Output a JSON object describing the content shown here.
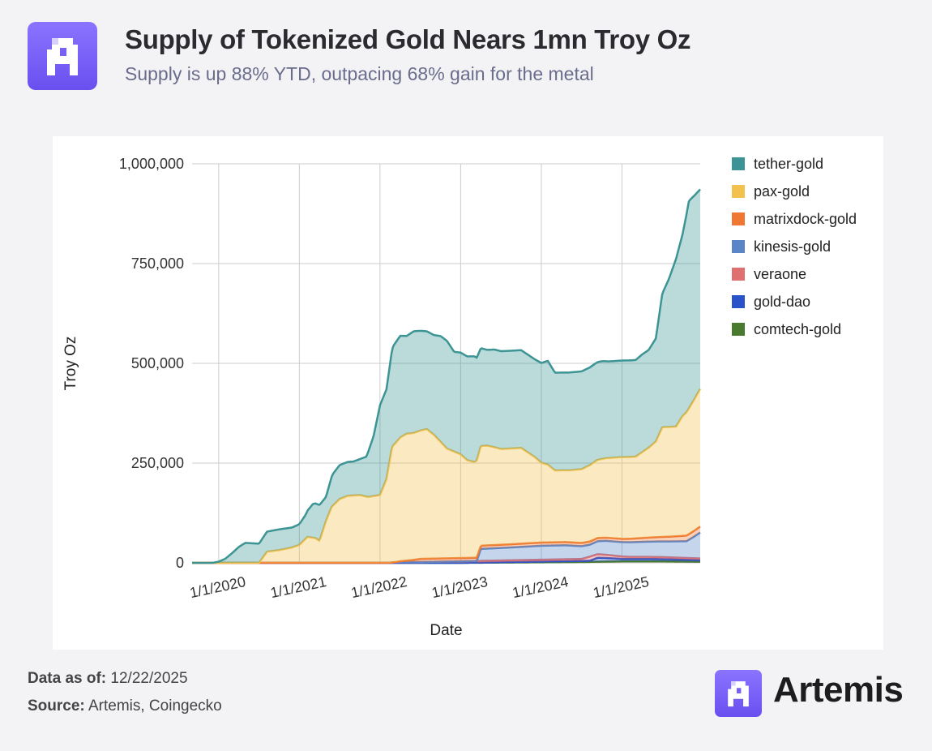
{
  "header": {
    "title": "Supply of Tokenized Gold Nears 1mn Troy Oz",
    "subtitle": "Supply is up 88% YTD,  outpacing 68% gain for the metal"
  },
  "footer": {
    "data_as_of_label": "Data as of:",
    "data_as_of_value": "12/22/2025",
    "source_label": "Source:",
    "source_value": "Artemis, Coingecko",
    "brand": "Artemis"
  },
  "colors": {
    "tether-gold": "#3d9494",
    "pax-gold": "#f2c14e",
    "matrixdock-gold": "#ef7733",
    "kinesis-gold": "#5a86c8",
    "veraone": "#e07070",
    "gold-dao": "#2a52c9",
    "comtech-gold": "#4a7a30"
  },
  "chart_data": {
    "type": "area",
    "stacked": true,
    "xlabel": "Date",
    "ylabel": "Troy Oz",
    "ylim": [
      0,
      1000000
    ],
    "xlim": [
      2019.67,
      2025.97
    ],
    "yticks": [
      0,
      250000,
      500000,
      750000,
      1000000
    ],
    "ytick_labels": [
      "0",
      "250,000",
      "500,000",
      "750,000",
      "1,000,000"
    ],
    "xticks": [
      2020,
      2021,
      2022,
      2023,
      2024,
      2025
    ],
    "xtick_labels": [
      "1/1/2020",
      "1/1/2021",
      "1/1/2022",
      "1/1/2023",
      "1/1/2024",
      "1/1/2025"
    ],
    "grid": true,
    "legend_position": "right",
    "series": [
      {
        "name": "comtech-gold",
        "points": [
          [
            2019.67,
            0
          ],
          [
            2023.0,
            0
          ],
          [
            2024.5,
            2000
          ],
          [
            2025.0,
            4000
          ],
          [
            2025.5,
            4000
          ],
          [
            2025.97,
            3000
          ]
        ]
      },
      {
        "name": "gold-dao",
        "points": [
          [
            2019.67,
            0
          ],
          [
            2023.0,
            0
          ],
          [
            2024.6,
            3000
          ],
          [
            2024.7,
            10000
          ],
          [
            2024.8,
            9000
          ],
          [
            2025.0,
            6000
          ],
          [
            2025.3,
            6000
          ],
          [
            2025.97,
            4000
          ]
        ]
      },
      {
        "name": "veraone",
        "points": [
          [
            2019.67,
            0
          ],
          [
            2022.1,
            0
          ],
          [
            2022.2,
            2000
          ],
          [
            2022.5,
            2000
          ],
          [
            2023.0,
            4000
          ],
          [
            2024.5,
            5000
          ],
          [
            2024.6,
            10000
          ],
          [
            2024.9,
            7000
          ],
          [
            2025.1,
            5000
          ],
          [
            2025.5,
            5000
          ],
          [
            2025.97,
            4000
          ]
        ]
      },
      {
        "name": "kinesis-gold",
        "points": [
          [
            2019.67,
            0
          ],
          [
            2023.2,
            0
          ],
          [
            2023.25,
            30000
          ],
          [
            2023.6,
            32000
          ],
          [
            2024.0,
            35000
          ],
          [
            2024.3,
            35000
          ],
          [
            2024.5,
            32000
          ],
          [
            2024.6,
            30000
          ],
          [
            2024.8,
            35000
          ],
          [
            2025.0,
            36000
          ],
          [
            2025.3,
            38000
          ],
          [
            2025.6,
            40000
          ],
          [
            2025.8,
            42000
          ],
          [
            2025.9,
            55000
          ],
          [
            2025.97,
            65000
          ]
        ]
      },
      {
        "name": "matrixdock-gold",
        "points": [
          [
            2019.67,
            0
          ],
          [
            2022.2,
            0
          ],
          [
            2022.25,
            2000
          ],
          [
            2022.4,
            5000
          ],
          [
            2022.5,
            8000
          ],
          [
            2023.2,
            8000
          ],
          [
            2023.25,
            8000
          ],
          [
            2024.0,
            8000
          ],
          [
            2024.3,
            8000
          ],
          [
            2024.6,
            8000
          ],
          [
            2025.0,
            8000
          ],
          [
            2025.3,
            10000
          ],
          [
            2025.6,
            12000
          ],
          [
            2025.8,
            14000
          ],
          [
            2025.97,
            15000
          ]
        ]
      },
      {
        "name": "pax-gold",
        "points": [
          [
            2019.67,
            0
          ],
          [
            2020.5,
            0
          ],
          [
            2020.6,
            28000
          ],
          [
            2020.75,
            32000
          ],
          [
            2020.9,
            38000
          ],
          [
            2021.0,
            45000
          ],
          [
            2021.1,
            65000
          ],
          [
            2021.2,
            62000
          ],
          [
            2021.25,
            55000
          ],
          [
            2021.33,
            105000
          ],
          [
            2021.4,
            140000
          ],
          [
            2021.5,
            160000
          ],
          [
            2021.6,
            168000
          ],
          [
            2021.75,
            170000
          ],
          [
            2021.85,
            165000
          ],
          [
            2022.0,
            170000
          ],
          [
            2022.08,
            210000
          ],
          [
            2022.15,
            290000
          ],
          [
            2022.25,
            310000
          ],
          [
            2022.33,
            318000
          ],
          [
            2022.42,
            318000
          ],
          [
            2022.58,
            325000
          ],
          [
            2022.67,
            310000
          ],
          [
            2022.83,
            275000
          ],
          [
            2023.0,
            260000
          ],
          [
            2023.08,
            245000
          ],
          [
            2023.17,
            240000
          ],
          [
            2023.25,
            250000
          ],
          [
            2023.33,
            250000
          ],
          [
            2023.42,
            245000
          ],
          [
            2023.5,
            240000
          ],
          [
            2023.58,
            240000
          ],
          [
            2023.75,
            240000
          ],
          [
            2023.92,
            215000
          ],
          [
            2024.0,
            200000
          ],
          [
            2024.08,
            195000
          ],
          [
            2024.17,
            180000
          ],
          [
            2024.33,
            180000
          ],
          [
            2024.5,
            185000
          ],
          [
            2024.58,
            190000
          ],
          [
            2024.67,
            195000
          ],
          [
            2024.83,
            200000
          ],
          [
            2025.0,
            205000
          ],
          [
            2025.17,
            205000
          ],
          [
            2025.25,
            215000
          ],
          [
            2025.33,
            225000
          ],
          [
            2025.42,
            240000
          ],
          [
            2025.5,
            275000
          ],
          [
            2025.58,
            275000
          ],
          [
            2025.67,
            275000
          ],
          [
            2025.75,
            300000
          ],
          [
            2025.83,
            315000
          ],
          [
            2025.97,
            345000
          ]
        ]
      },
      {
        "name": "tether-gold",
        "points": [
          [
            2019.67,
            0
          ],
          [
            2019.92,
            0
          ],
          [
            2020.0,
            3000
          ],
          [
            2020.08,
            10000
          ],
          [
            2020.17,
            25000
          ],
          [
            2020.25,
            40000
          ],
          [
            2020.33,
            50000
          ],
          [
            2020.5,
            48000
          ],
          [
            2020.58,
            50000
          ],
          [
            2020.75,
            52000
          ],
          [
            2020.92,
            50000
          ],
          [
            2021.0,
            52000
          ],
          [
            2021.08,
            60000
          ],
          [
            2021.17,
            85000
          ],
          [
            2021.25,
            90000
          ],
          [
            2021.33,
            60000
          ],
          [
            2021.42,
            80000
          ],
          [
            2021.5,
            85000
          ],
          [
            2021.58,
            85000
          ],
          [
            2021.67,
            85000
          ],
          [
            2021.75,
            90000
          ],
          [
            2021.83,
            100000
          ],
          [
            2021.92,
            150000
          ],
          [
            2022.0,
            225000
          ],
          [
            2022.08,
            225000
          ],
          [
            2022.17,
            250000
          ],
          [
            2022.25,
            255000
          ],
          [
            2022.33,
            245000
          ],
          [
            2022.42,
            255000
          ],
          [
            2022.58,
            245000
          ],
          [
            2022.67,
            250000
          ],
          [
            2022.75,
            265000
          ],
          [
            2022.83,
            270000
          ],
          [
            2022.92,
            250000
          ],
          [
            2023.0,
            255000
          ],
          [
            2023.08,
            260000
          ],
          [
            2023.17,
            265000
          ],
          [
            2023.25,
            245000
          ],
          [
            2023.33,
            240000
          ],
          [
            2023.42,
            245000
          ],
          [
            2023.5,
            245000
          ],
          [
            2023.67,
            245000
          ],
          [
            2023.75,
            245000
          ],
          [
            2023.83,
            245000
          ],
          [
            2023.92,
            245000
          ],
          [
            2024.0,
            250000
          ],
          [
            2024.08,
            260000
          ],
          [
            2024.17,
            245000
          ],
          [
            2024.33,
            245000
          ],
          [
            2024.5,
            245000
          ],
          [
            2024.58,
            245000
          ],
          [
            2024.67,
            245000
          ],
          [
            2024.75,
            245000
          ],
          [
            2024.83,
            242000
          ],
          [
            2024.92,
            242000
          ],
          [
            2025.0,
            242000
          ],
          [
            2025.08,
            242000
          ],
          [
            2025.17,
            242000
          ],
          [
            2025.25,
            245000
          ],
          [
            2025.33,
            245000
          ],
          [
            2025.42,
            258000
          ],
          [
            2025.5,
            335000
          ],
          [
            2025.58,
            370000
          ],
          [
            2025.67,
            420000
          ],
          [
            2025.75,
            455000
          ],
          [
            2025.83,
            520000
          ],
          [
            2025.97,
            500000
          ]
        ]
      }
    ],
    "totals_note": "series values are stacked layer increments; top of stack reaches ~975,000 at end"
  }
}
